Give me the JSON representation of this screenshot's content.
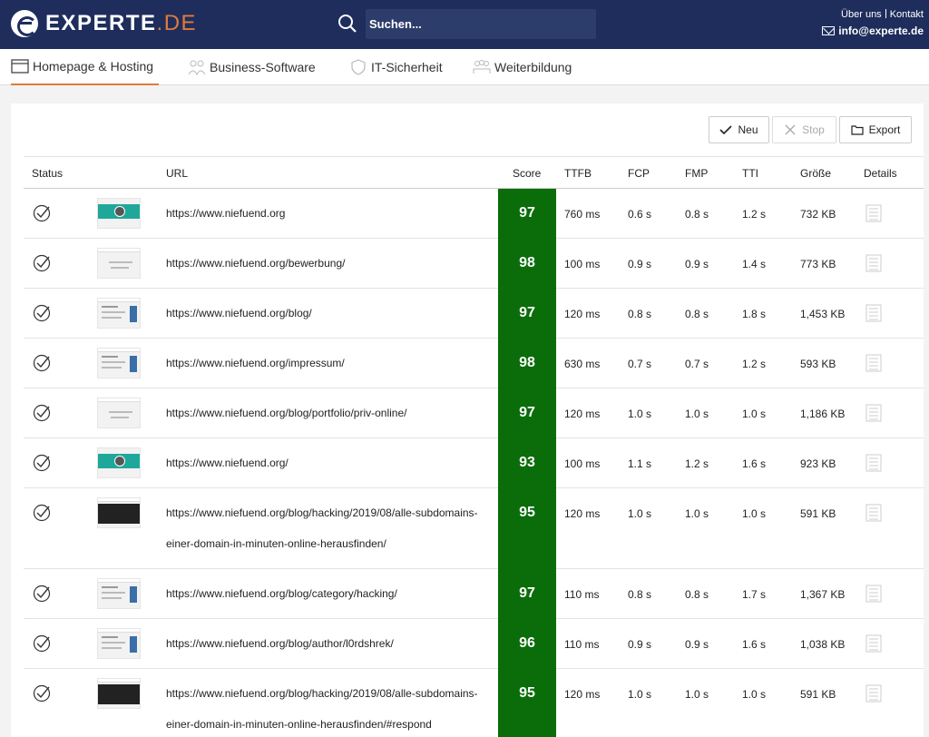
{
  "header": {
    "logo_text": "EXPERTE",
    "logo_suffix": ".DE",
    "search_placeholder": "Suchen...",
    "link_about": "Über uns",
    "link_contact": "Kontakt",
    "email": "info@experte.de"
  },
  "nav": {
    "tabs": [
      {
        "label": "Homepage & Hosting",
        "icon": "browser-window-icon",
        "active": true
      },
      {
        "label": "Business-Software",
        "icon": "people-icon",
        "active": false
      },
      {
        "label": "IT-Sicherheit",
        "icon": "shield-icon",
        "active": false
      },
      {
        "label": "Weiterbildung",
        "icon": "group-icon",
        "active": false
      }
    ]
  },
  "toolbar": {
    "new_label": "Neu",
    "stop_label": "Stop",
    "export_label": "Export"
  },
  "table": {
    "columns": {
      "status": "Status",
      "url": "URL",
      "score": "Score",
      "ttfb": "TTFB",
      "fcp": "FCP",
      "fmp": "FMP",
      "tti": "TTI",
      "size": "Größe",
      "details": "Details"
    },
    "score_color": "#0a6d0a",
    "rows": [
      {
        "url_line1": "https://www.niefuend.org",
        "url_line2": "",
        "score": "97",
        "ttfb": "760 ms",
        "fcp": "0.6 s",
        "fmp": "0.8 s",
        "tti": "1.2 s",
        "size": "732 KB",
        "thumb": "teal"
      },
      {
        "url_line1": "https://www.niefuend.org/bewerbung/",
        "url_line2": "",
        "score": "98",
        "ttfb": "100 ms",
        "fcp": "0.9 s",
        "fmp": "0.9 s",
        "tti": "1.4 s",
        "size": "773 KB",
        "thumb": "plain"
      },
      {
        "url_line1": "https://www.niefuend.org/blog/",
        "url_line2": "",
        "score": "97",
        "ttfb": "120 ms",
        "fcp": "0.8 s",
        "fmp": "0.8 s",
        "tti": "1.8 s",
        "size": "1,453 KB",
        "thumb": "blog"
      },
      {
        "url_line1": "https://www.niefuend.org/impressum/",
        "url_line2": "",
        "score": "98",
        "ttfb": "630 ms",
        "fcp": "0.7 s",
        "fmp": "0.7 s",
        "tti": "1.2 s",
        "size": "593 KB",
        "thumb": "blog"
      },
      {
        "url_line1": "https://www.niefuend.org/blog/portfolio/priv-online/",
        "url_line2": "",
        "score": "97",
        "ttfb": "120 ms",
        "fcp": "1.0 s",
        "fmp": "1.0 s",
        "tti": "1.0 s",
        "size": "1,186 KB",
        "thumb": "plain"
      },
      {
        "url_line1": "https://www.niefuend.org/",
        "url_line2": "",
        "score": "93",
        "ttfb": "100 ms",
        "fcp": "1.1 s",
        "fmp": "1.2 s",
        "tti": "1.6 s",
        "size": "923 KB",
        "thumb": "teal"
      },
      {
        "url_line1": "https://www.niefuend.org/blog/hacking/2019/08/alle-subdomains-",
        "url_line2": "einer-domain-in-minuten-online-herausfinden/",
        "score": "95",
        "ttfb": "120 ms",
        "fcp": "1.0 s",
        "fmp": "1.0 s",
        "tti": "1.0 s",
        "size": "591 KB",
        "thumb": "dark"
      },
      {
        "url_line1": "https://www.niefuend.org/blog/category/hacking/",
        "url_line2": "",
        "score": "97",
        "ttfb": "110 ms",
        "fcp": "0.8 s",
        "fmp": "0.8 s",
        "tti": "1.7 s",
        "size": "1,367 KB",
        "thumb": "blog"
      },
      {
        "url_line1": "https://www.niefuend.org/blog/author/l0rdshrek/",
        "url_line2": "",
        "score": "96",
        "ttfb": "110 ms",
        "fcp": "0.9 s",
        "fmp": "0.9 s",
        "tti": "1.6 s",
        "size": "1,038 KB",
        "thumb": "blog"
      },
      {
        "url_line1": "https://www.niefuend.org/blog/hacking/2019/08/alle-subdomains-",
        "url_line2": "einer-domain-in-minuten-online-herausfinden/#respond",
        "score": "95",
        "ttfb": "120 ms",
        "fcp": "1.0 s",
        "fmp": "1.0 s",
        "tti": "1.0 s",
        "size": "591 KB",
        "thumb": "dark"
      }
    ]
  }
}
